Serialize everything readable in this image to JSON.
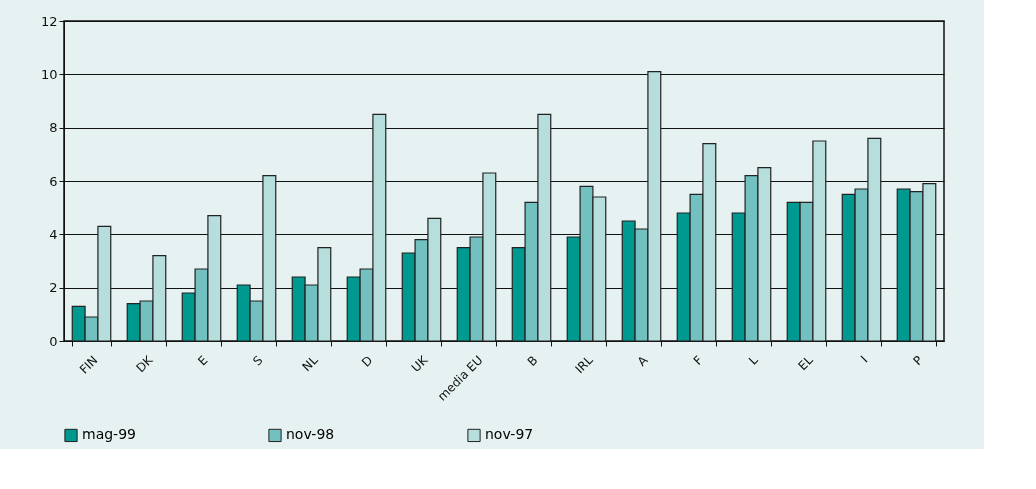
{
  "chart_data": {
    "type": "bar",
    "categories": [
      "FIN",
      "DK",
      "E",
      "S",
      "NL",
      "D",
      "UK",
      "media EU",
      "B",
      "IRL",
      "A",
      "F",
      "L",
      "EL",
      "I",
      "P"
    ],
    "series": [
      {
        "name": "mag-99",
        "color": "#009990",
        "values": [
          1.3,
          1.4,
          1.8,
          2.1,
          2.4,
          2.4,
          3.3,
          3.5,
          3.5,
          3.9,
          4.5,
          4.8,
          4.8,
          5.2,
          5.5,
          5.7
        ]
      },
      {
        "name": "nov-98",
        "color": "#73c0c0",
        "values": [
          0.9,
          1.5,
          2.7,
          1.5,
          2.1,
          2.7,
          3.8,
          3.9,
          5.2,
          5.8,
          4.2,
          5.5,
          6.2,
          5.2,
          5.7,
          5.6
        ]
      },
      {
        "name": "nov-97",
        "color": "#b6dedc",
        "values": [
          4.3,
          3.2,
          4.7,
          6.2,
          3.5,
          8.5,
          4.6,
          6.3,
          8.5,
          5.4,
          10.1,
          7.4,
          6.5,
          7.5,
          7.6,
          5.9
        ]
      }
    ],
    "ylim": [
      0,
      12
    ],
    "yticks": [
      0,
      2,
      4,
      6,
      8,
      10,
      12
    ],
    "grid": "y",
    "legend": "bottom"
  }
}
